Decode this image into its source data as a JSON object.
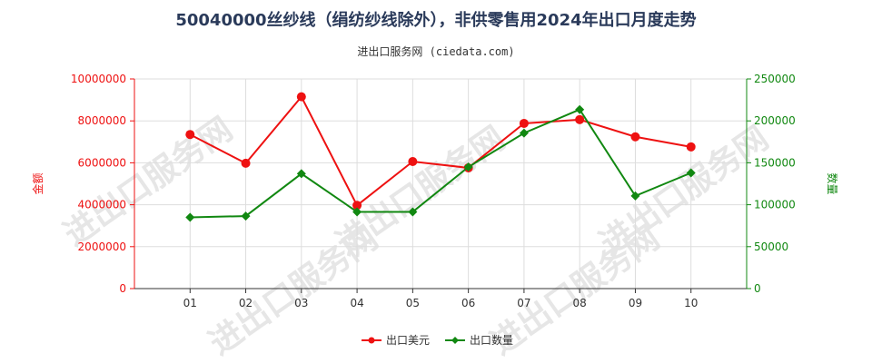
{
  "page": {
    "title": "50040000丝纱线（绢纺纱线除外），非供零售用2024年出口月度走势",
    "subtitle": "进出口服务网 (ciedata.com)",
    "watermark": "进出口服务网"
  },
  "chart_data": {
    "type": "line",
    "x": [
      "01",
      "02",
      "03",
      "04",
      "05",
      "06",
      "07",
      "08",
      "09",
      "10"
    ],
    "series": [
      {
        "name": "出口美元",
        "axis": "left",
        "color": "#ee1111",
        "marker": "circle",
        "values": [
          7350000,
          5980000,
          9150000,
          3970000,
          6060000,
          5760000,
          7880000,
          8060000,
          7240000,
          6760000
        ]
      },
      {
        "name": "出口数量",
        "axis": "right",
        "color": "#118811",
        "marker": "diamond",
        "values": [
          85000,
          86500,
          137000,
          91500,
          91500,
          145000,
          185500,
          213500,
          110500,
          138000
        ]
      }
    ],
    "y_left": {
      "label": "金额",
      "min": 0,
      "max": 10000000,
      "ticks": [
        "0",
        "2000000",
        "4000000",
        "6000000",
        "8000000",
        "10000000"
      ],
      "color": "#ee1111"
    },
    "y_right": {
      "label": "数量",
      "min": 0,
      "max": 250000,
      "ticks": [
        "0",
        "50000",
        "100000",
        "150000",
        "200000",
        "250000"
      ],
      "color": "#118811"
    },
    "grid": true,
    "legend": "bottom"
  }
}
